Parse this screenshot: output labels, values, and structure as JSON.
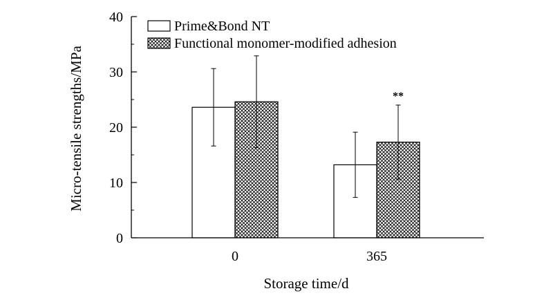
{
  "chart_data": {
    "type": "bar",
    "title": "",
    "xlabel": "Storage time/d",
    "ylabel": "Micro-tensile strengths/MPa",
    "ylim": [
      0,
      40
    ],
    "yticks": [
      0,
      10,
      20,
      30,
      40
    ],
    "categories": [
      "0",
      "365"
    ],
    "grid": false,
    "legend_position": "top-left",
    "series": [
      {
        "name": "Prime&Bond NT",
        "fill": "white",
        "values": [
          23.6,
          13.2
        ],
        "errors": [
          7.0,
          5.9
        ]
      },
      {
        "name": "Functional monomer-modified adhesion",
        "fill": "crosshatch",
        "values": [
          24.6,
          17.3
        ],
        "errors": [
          8.3,
          6.7
        ]
      }
    ],
    "annotations": [
      {
        "category": "365",
        "series": 1,
        "text": "**"
      }
    ]
  }
}
